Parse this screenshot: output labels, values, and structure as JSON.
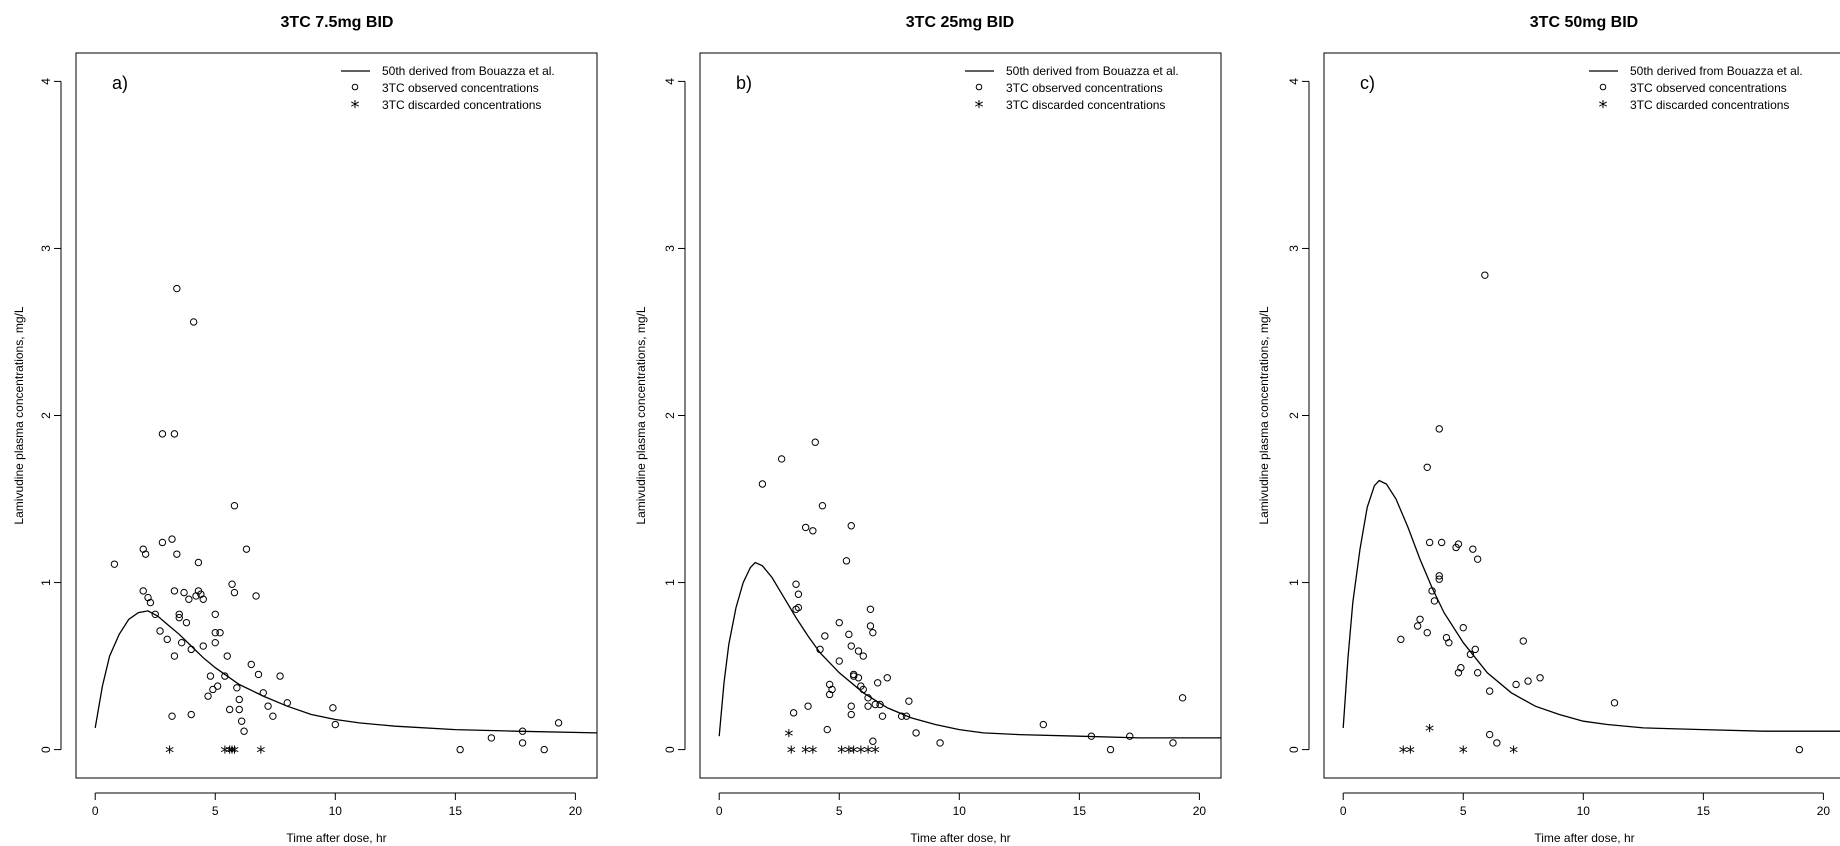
{
  "chart_data": [
    {
      "type": "scatter",
      "title": "3TC 7.5mg BID",
      "panel_label": "a)",
      "xlabel": "Time after dose, hr",
      "ylabel": "Lamivudine plasma concentrations, mg/L",
      "xlim": [
        -0.8,
        20.9
      ],
      "ylim": [
        -0.17,
        4.17
      ],
      "xticks": [
        "0",
        "5",
        "10",
        "15",
        "20"
      ],
      "yticks": [
        "0",
        "1",
        "2",
        "3",
        "4"
      ],
      "legend_position": "top-right",
      "legend": [
        "50th derived from Bouazza et al.",
        "3TC observed concentrations",
        "3TC discarded concentrations"
      ],
      "series": [
        {
          "name": "50th derived from Bouazza et al.",
          "kind": "line",
          "points": [
            [
              0,
              0.13
            ],
            [
              0.3,
              0.38
            ],
            [
              0.6,
              0.56
            ],
            [
              1.0,
              0.69
            ],
            [
              1.4,
              0.78
            ],
            [
              1.8,
              0.82
            ],
            [
              2.2,
              0.83
            ],
            [
              2.6,
              0.8
            ],
            [
              3.0,
              0.75
            ],
            [
              3.5,
              0.69
            ],
            [
              4.0,
              0.62
            ],
            [
              4.5,
              0.55
            ],
            [
              5.0,
              0.49
            ],
            [
              6.0,
              0.39
            ],
            [
              7.0,
              0.32
            ],
            [
              8.0,
              0.26
            ],
            [
              9.0,
              0.21
            ],
            [
              10.0,
              0.18
            ],
            [
              11.0,
              0.16
            ],
            [
              12.5,
              0.14
            ],
            [
              15.0,
              0.12
            ],
            [
              17.5,
              0.11
            ],
            [
              20.9,
              0.1
            ]
          ]
        },
        {
          "name": "3TC observed concentrations",
          "kind": "circle",
          "points": [
            [
              0.8,
              1.11
            ],
            [
              2.0,
              1.2
            ],
            [
              2.1,
              1.17
            ],
            [
              2.0,
              0.95
            ],
            [
              2.2,
              0.91
            ],
            [
              2.3,
              0.88
            ],
            [
              2.5,
              0.81
            ],
            [
              2.7,
              0.71
            ],
            [
              2.8,
              1.89
            ],
            [
              2.8,
              1.24
            ],
            [
              3.0,
              0.66
            ],
            [
              3.2,
              1.26
            ],
            [
              3.3,
              1.89
            ],
            [
              3.3,
              0.95
            ],
            [
              3.4,
              2.76
            ],
            [
              3.4,
              1.17
            ],
            [
              3.3,
              0.56
            ],
            [
              3.5,
              0.79
            ],
            [
              3.5,
              0.81
            ],
            [
              3.6,
              0.64
            ],
            [
              3.7,
              0.94
            ],
            [
              3.8,
              0.76
            ],
            [
              3.9,
              0.9
            ],
            [
              4.0,
              0.6
            ],
            [
              4.0,
              0.21
            ],
            [
              4.1,
              2.56
            ],
            [
              4.2,
              0.92
            ],
            [
              4.3,
              1.12
            ],
            [
              4.3,
              0.95
            ],
            [
              4.4,
              0.93
            ],
            [
              4.5,
              0.9
            ],
            [
              4.5,
              0.62
            ],
            [
              4.7,
              0.32
            ],
            [
              4.8,
              0.44
            ],
            [
              4.9,
              0.36
            ],
            [
              5.0,
              0.7
            ],
            [
              5.0,
              0.64
            ],
            [
              5.0,
              0.81
            ],
            [
              5.1,
              0.38
            ],
            [
              5.2,
              0.7
            ],
            [
              5.4,
              0.44
            ],
            [
              5.5,
              0.56
            ],
            [
              5.6,
              0.24
            ],
            [
              5.7,
              0.99
            ],
            [
              5.8,
              1.46
            ],
            [
              5.8,
              0.94
            ],
            [
              5.9,
              0.37
            ],
            [
              6.0,
              0.3
            ],
            [
              6.0,
              0.24
            ],
            [
              6.1,
              0.17
            ],
            [
              6.2,
              0.11
            ],
            [
              6.3,
              1.2
            ],
            [
              6.5,
              0.51
            ],
            [
              6.7,
              0.92
            ],
            [
              6.8,
              0.45
            ],
            [
              7.0,
              0.34
            ],
            [
              7.2,
              0.26
            ],
            [
              7.4,
              0.2
            ],
            [
              7.7,
              0.44
            ],
            [
              8.0,
              0.28
            ],
            [
              9.9,
              0.25
            ],
            [
              10.0,
              0.15
            ],
            [
              15.2,
              0.0
            ],
            [
              16.5,
              0.07
            ],
            [
              17.8,
              0.11
            ],
            [
              17.8,
              0.04
            ],
            [
              18.7,
              0.0
            ],
            [
              19.3,
              0.16
            ],
            [
              3.2,
              0.2
            ]
          ]
        },
        {
          "name": "3TC discarded concentrations",
          "kind": "star",
          "points": [
            [
              3.1,
              0
            ],
            [
              5.4,
              0
            ],
            [
              5.6,
              0
            ],
            [
              5.7,
              0
            ],
            [
              5.8,
              0
            ],
            [
              6.9,
              0
            ]
          ]
        }
      ]
    },
    {
      "type": "scatter",
      "title": "3TC 25mg BID",
      "panel_label": "b)",
      "xlabel": "Time after dose, hr",
      "ylabel": "Lamivudine plasma concentrations, mg/L",
      "xlim": [
        -0.8,
        20.9
      ],
      "ylim": [
        -0.17,
        4.17
      ],
      "xticks": [
        "0",
        "5",
        "10",
        "15",
        "20"
      ],
      "yticks": [
        "0",
        "1",
        "2",
        "3",
        "4"
      ],
      "legend_position": "top-right",
      "legend": [
        "50th derived from Bouazza et al.",
        "3TC observed concentrations",
        "3TC discarded concentrations"
      ],
      "series": [
        {
          "name": "50th derived from Bouazza et al.",
          "kind": "line",
          "points": [
            [
              0,
              0.08
            ],
            [
              0.2,
              0.4
            ],
            [
              0.4,
              0.63
            ],
            [
              0.7,
              0.85
            ],
            [
              1.0,
              1.0
            ],
            [
              1.3,
              1.09
            ],
            [
              1.5,
              1.12
            ],
            [
              1.8,
              1.1
            ],
            [
              2.2,
              1.03
            ],
            [
              2.7,
              0.91
            ],
            [
              3.2,
              0.79
            ],
            [
              3.7,
              0.68
            ],
            [
              4.2,
              0.58
            ],
            [
              5.0,
              0.46
            ],
            [
              6.0,
              0.34
            ],
            [
              7.0,
              0.25
            ],
            [
              8.0,
              0.19
            ],
            [
              9.0,
              0.15
            ],
            [
              10.0,
              0.12
            ],
            [
              11.0,
              0.1
            ],
            [
              12.5,
              0.09
            ],
            [
              15.0,
              0.08
            ],
            [
              17.5,
              0.07
            ],
            [
              20.9,
              0.07
            ]
          ]
        },
        {
          "name": "3TC observed concentrations",
          "kind": "circle",
          "points": [
            [
              1.8,
              1.59
            ],
            [
              2.6,
              1.74
            ],
            [
              3.1,
              0.22
            ],
            [
              3.2,
              0.99
            ],
            [
              3.2,
              0.84
            ],
            [
              3.3,
              0.93
            ],
            [
              3.3,
              0.85
            ],
            [
              3.6,
              1.33
            ],
            [
              3.7,
              0.26
            ],
            [
              3.9,
              1.31
            ],
            [
              4.0,
              1.84
            ],
            [
              4.2,
              0.6
            ],
            [
              4.3,
              1.46
            ],
            [
              4.4,
              0.68
            ],
            [
              4.5,
              0.12
            ],
            [
              4.6,
              0.33
            ],
            [
              4.6,
              0.39
            ],
            [
              4.7,
              0.36
            ],
            [
              5.0,
              0.76
            ],
            [
              5.0,
              0.53
            ],
            [
              5.3,
              1.13
            ],
            [
              5.4,
              0.69
            ],
            [
              5.5,
              0.62
            ],
            [
              5.5,
              0.26
            ],
            [
              5.5,
              0.21
            ],
            [
              5.5,
              1.34
            ],
            [
              5.6,
              0.45
            ],
            [
              5.6,
              0.44
            ],
            [
              5.8,
              0.59
            ],
            [
              5.8,
              0.43
            ],
            [
              5.9,
              0.38
            ],
            [
              6.0,
              0.56
            ],
            [
              6.0,
              0.36
            ],
            [
              6.2,
              0.31
            ],
            [
              6.2,
              0.26
            ],
            [
              6.3,
              0.84
            ],
            [
              6.3,
              0.74
            ],
            [
              6.4,
              0.7
            ],
            [
              6.4,
              0.05
            ],
            [
              6.5,
              0.27
            ],
            [
              6.6,
              0.4
            ],
            [
              6.7,
              0.27
            ],
            [
              6.8,
              0.2
            ],
            [
              7.0,
              0.43
            ],
            [
              7.6,
              0.2
            ],
            [
              7.8,
              0.2
            ],
            [
              7.9,
              0.29
            ],
            [
              8.2,
              0.1
            ],
            [
              9.2,
              0.04
            ],
            [
              13.5,
              0.15
            ],
            [
              15.5,
              0.08
            ],
            [
              16.3,
              0.0
            ],
            [
              17.1,
              0.08
            ],
            [
              18.9,
              0.04
            ],
            [
              19.3,
              0.31
            ]
          ]
        },
        {
          "name": "3TC discarded concentrations",
          "kind": "star",
          "points": [
            [
              2.9,
              0.1
            ],
            [
              3.0,
              0
            ],
            [
              3.6,
              0
            ],
            [
              3.9,
              0
            ],
            [
              5.1,
              0
            ],
            [
              5.4,
              0
            ],
            [
              5.6,
              0
            ],
            [
              5.9,
              0
            ],
            [
              6.2,
              0
            ],
            [
              6.5,
              0
            ]
          ]
        }
      ]
    },
    {
      "type": "scatter",
      "title": "3TC 50mg BID",
      "panel_label": "c)",
      "xlabel": "Time after dose, hr",
      "ylabel": "Lamivudine plasma concentrations, mg/L",
      "xlim": [
        -0.8,
        20.9
      ],
      "ylim": [
        -0.17,
        4.17
      ],
      "xticks": [
        "0",
        "5",
        "10",
        "15",
        "20"
      ],
      "yticks": [
        "0",
        "1",
        "2",
        "3",
        "4"
      ],
      "legend_position": "top-right",
      "legend": [
        "50th derived from Bouazza et al.",
        "3TC observed concentrations",
        "3TC discarded concentrations"
      ],
      "series": [
        {
          "name": "50th derived from Bouazza et al.",
          "kind": "line",
          "points": [
            [
              0,
              0.13
            ],
            [
              0.2,
              0.55
            ],
            [
              0.4,
              0.88
            ],
            [
              0.7,
              1.2
            ],
            [
              1.0,
              1.45
            ],
            [
              1.3,
              1.58
            ],
            [
              1.5,
              1.61
            ],
            [
              1.8,
              1.59
            ],
            [
              2.2,
              1.5
            ],
            [
              2.7,
              1.33
            ],
            [
              3.2,
              1.14
            ],
            [
              3.7,
              0.97
            ],
            [
              4.2,
              0.82
            ],
            [
              5.0,
              0.64
            ],
            [
              6.0,
              0.46
            ],
            [
              7.0,
              0.34
            ],
            [
              8.0,
              0.26
            ],
            [
              9.0,
              0.21
            ],
            [
              10.0,
              0.17
            ],
            [
              11.0,
              0.15
            ],
            [
              12.5,
              0.13
            ],
            [
              15.0,
              0.12
            ],
            [
              17.5,
              0.11
            ],
            [
              20.9,
              0.11
            ]
          ]
        },
        {
          "name": "3TC observed concentrations",
          "kind": "circle",
          "points": [
            [
              2.4,
              0.66
            ],
            [
              3.1,
              0.74
            ],
            [
              3.2,
              0.78
            ],
            [
              3.5,
              1.69
            ],
            [
              3.5,
              0.7
            ],
            [
              3.6,
              1.24
            ],
            [
              3.7,
              0.95
            ],
            [
              3.8,
              0.89
            ],
            [
              4.0,
              1.04
            ],
            [
              4.0,
              1.02
            ],
            [
              4.0,
              1.92
            ],
            [
              4.1,
              1.24
            ],
            [
              4.3,
              0.67
            ],
            [
              4.4,
              0.64
            ],
            [
              4.7,
              1.21
            ],
            [
              4.8,
              1.23
            ],
            [
              4.8,
              0.46
            ],
            [
              4.9,
              0.49
            ],
            [
              5.0,
              0.73
            ],
            [
              5.3,
              0.57
            ],
            [
              5.4,
              1.2
            ],
            [
              5.5,
              0.6
            ],
            [
              5.6,
              1.14
            ],
            [
              5.6,
              0.46
            ],
            [
              5.9,
              2.84
            ],
            [
              6.1,
              0.35
            ],
            [
              6.1,
              0.09
            ],
            [
              6.4,
              0.04
            ],
            [
              7.2,
              0.39
            ],
            [
              7.5,
              0.65
            ],
            [
              7.7,
              0.41
            ],
            [
              8.2,
              0.43
            ],
            [
              11.3,
              0.28
            ],
            [
              19.0,
              0.0
            ]
          ]
        },
        {
          "name": "3TC discarded concentrations",
          "kind": "star",
          "points": [
            [
              2.5,
              0
            ],
            [
              2.8,
              0
            ],
            [
              3.6,
              0.13
            ],
            [
              5.0,
              0
            ],
            [
              7.1,
              0
            ]
          ]
        }
      ]
    }
  ]
}
